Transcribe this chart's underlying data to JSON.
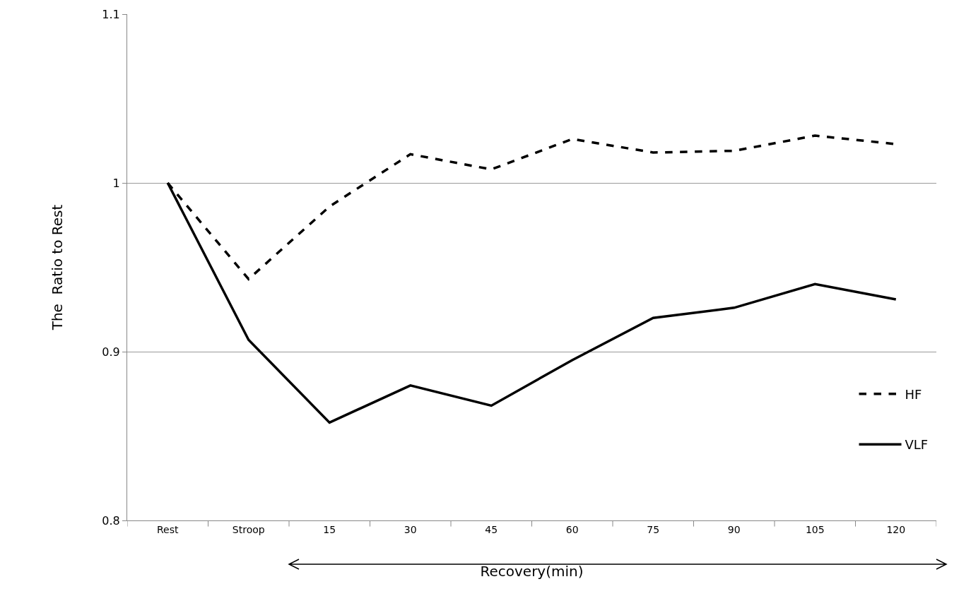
{
  "chart_data": {
    "type": "line",
    "xlabel": "Recovery(min)",
    "ylabel": "The  Ratio to Rest",
    "categories": [
      "Rest",
      "Stroop",
      "15",
      "30",
      "45",
      "60",
      "75",
      "90",
      "105",
      "120"
    ],
    "series": [
      {
        "name": "HF",
        "color": "#000000",
        "line_style": "dashed",
        "values": [
          1.0,
          0.943,
          0.986,
          1.017,
          1.008,
          1.026,
          1.018,
          1.019,
          1.028,
          1.023
        ]
      },
      {
        "name": "VLF",
        "color": "#000000",
        "line_style": "solid",
        "values": [
          1.0,
          0.907,
          0.858,
          0.88,
          0.868,
          0.895,
          0.92,
          0.926,
          0.94,
          0.931
        ]
      }
    ],
    "ylim": [
      0.8,
      1.1
    ],
    "yticks": [
      0.8,
      0.9,
      1,
      1.1
    ],
    "grid": "y",
    "legend": "right",
    "marker": "none"
  }
}
